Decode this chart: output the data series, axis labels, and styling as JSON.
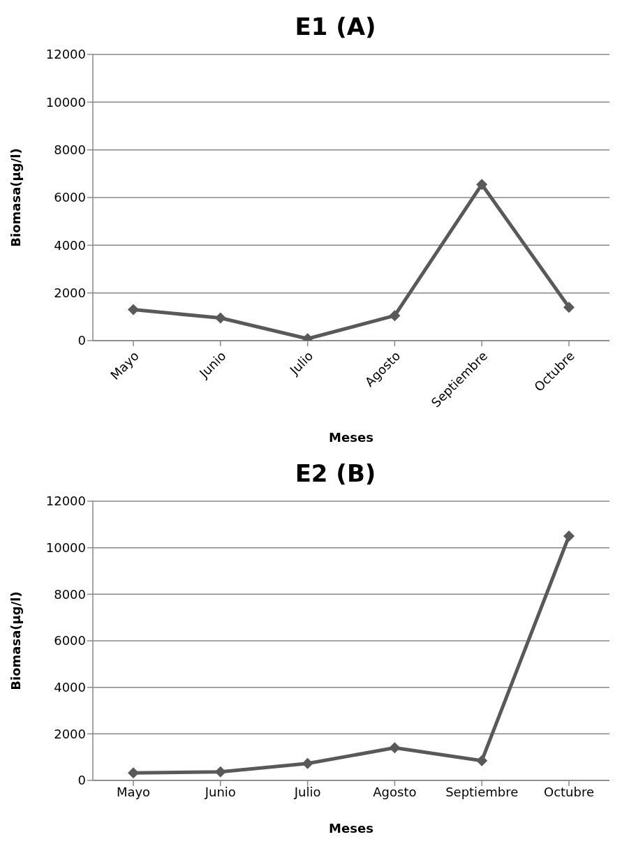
{
  "chart_data": [
    {
      "type": "line",
      "title": "E1 (A)",
      "xlabel": "Meses",
      "ylabel": "Biomasa(µg/l)",
      "categories": [
        "Mayo",
        "Junio",
        "Julio",
        "Agosto",
        "Septiembre",
        "Octubre"
      ],
      "series": [
        {
          "color": "#595959",
          "values": [
            1300,
            950,
            80,
            1050,
            6550,
            1400
          ]
        }
      ],
      "ylim": [
        0,
        12000
      ],
      "yticks": [
        0,
        2000,
        4000,
        6000,
        8000,
        10000,
        12000
      ],
      "grid": "y",
      "legend": false,
      "marker": "diamond",
      "line_style": "solid"
    },
    {
      "type": "line",
      "title": "E2 (B)",
      "xlabel": "Meses",
      "ylabel": "Biomasa(µg/l)",
      "categories": [
        "Mayo",
        "Junio",
        "Julio",
        "Agosto",
        "Septiembre",
        "Octubre"
      ],
      "series": [
        {
          "color": "#595959",
          "values": [
            320,
            370,
            730,
            1400,
            850,
            10500
          ]
        }
      ],
      "ylim": [
        0,
        12000
      ],
      "yticks": [
        0,
        2000,
        4000,
        6000,
        8000,
        10000,
        12000
      ],
      "grid": "y",
      "legend": false,
      "marker": "diamond",
      "line_style": "solid"
    }
  ]
}
